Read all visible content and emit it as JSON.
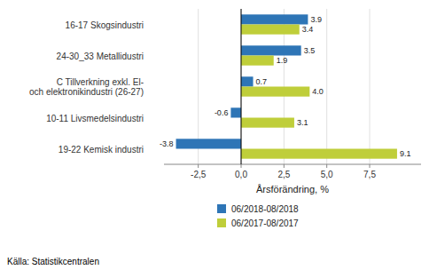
{
  "chart_data": {
    "type": "bar",
    "orientation": "horizontal",
    "categories": [
      "19-22 Kemisk industri",
      "10-11 Livsmedelsindustri",
      "C Tillverkning exkl. El-\noch elektronikindustri  (26-27)",
      "24-30_33 Metallidustri",
      "16-17 Skogsindustri"
    ],
    "series": [
      {
        "name": "06/2018-08/2018",
        "color": "#2E75B6",
        "values": [
          -3.8,
          -0.6,
          0.7,
          3.5,
          3.9
        ],
        "value_labels": [
          "-3.8",
          "-0.6",
          "0.7",
          "3.5",
          "3.9"
        ]
      },
      {
        "name": "06/2017-08/2017",
        "color": "#BFCE3A",
        "values": [
          9.1,
          3.1,
          4.0,
          1.9,
          3.4
        ],
        "value_labels": [
          "9.1",
          "3.1",
          "4.0",
          "1.9",
          "3.4"
        ]
      }
    ],
    "xlabel": "Årsförändring, %",
    "annotations": [
      "Källa: Statistikcentralen"
    ],
    "xlim": [
      -4.5,
      10.5
    ],
    "xticks": [
      {
        "value": -2.5,
        "label": "-2,5"
      },
      {
        "value": 0.0,
        "label": "0,0"
      },
      {
        "value": 2.5,
        "label": "2,5"
      },
      {
        "value": 5.0,
        "label": "5,0"
      },
      {
        "value": 7.5,
        "label": "7,5"
      }
    ],
    "grid": true,
    "legend": "bottom",
    "data_labels": true
  }
}
